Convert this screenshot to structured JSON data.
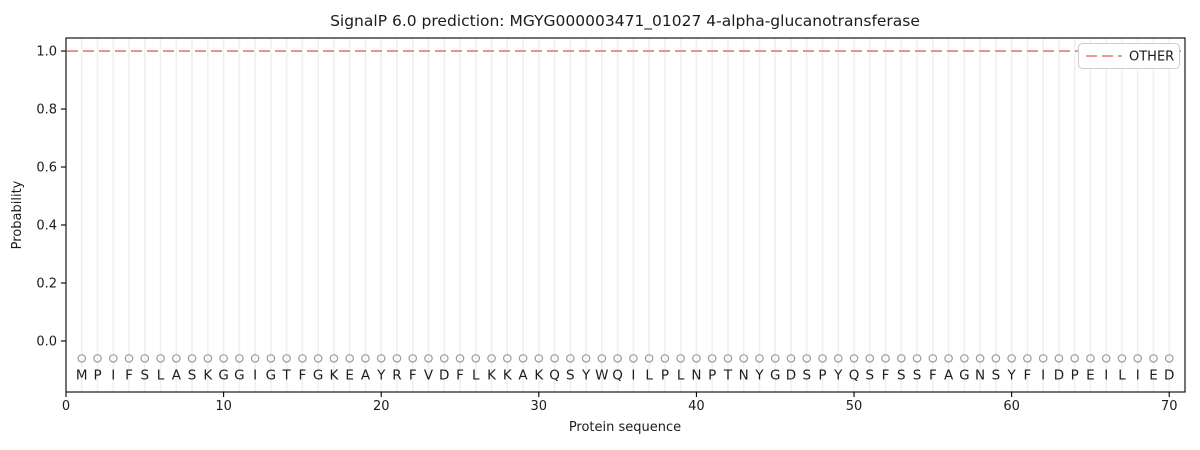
{
  "figure_title": "SignalP 6.0 prediction: MGYG000003471_01027 4-alpha-glucanotransferase",
  "chart_data": {
    "type": "line",
    "title": "SignalP 6.0 prediction: MGYG000003471_01027 4-alpha-glucanotransferase",
    "xlabel": "Protein sequence",
    "ylabel": "Probability",
    "xlim": [
      0,
      71
    ],
    "ylim": [
      -0.176,
      1.045
    ],
    "x_ticks": [
      0,
      10,
      20,
      30,
      40,
      50,
      60,
      70
    ],
    "y_ticks": [
      "0.0",
      "0.2",
      "0.4",
      "0.6",
      "0.8",
      "1.0"
    ],
    "grid": "light vertical gridline at every residue position, no horizontal gridlines",
    "sequence": "MPIFSLASKGGIGTFGKEAYRFVDFLKKAKQSYWQILPLNPTNYGDSPYQSFSSFAGNSYFIDPEILIED",
    "sequence_length": 70,
    "series": [
      {
        "name": "OTHER",
        "style": "dashed",
        "color": "#ea8a8a",
        "x_start": 1,
        "x_end": 70,
        "constant_y": 1.0
      }
    ],
    "markers": {
      "shape": "open-circle",
      "color": "#9b9b9b",
      "y": -0.06
    },
    "legend": {
      "position": "upper right",
      "entries": [
        "OTHER"
      ]
    }
  },
  "colors": {
    "background": "#ffffff",
    "other_line": "#ea8a8a",
    "gridline": "#f0f0f0",
    "marker_stroke": "#9b9b9b",
    "text": "#1c1c1c",
    "spine": "#000000",
    "legend_border": "#cccccc",
    "legend_background": "#ffffff"
  }
}
